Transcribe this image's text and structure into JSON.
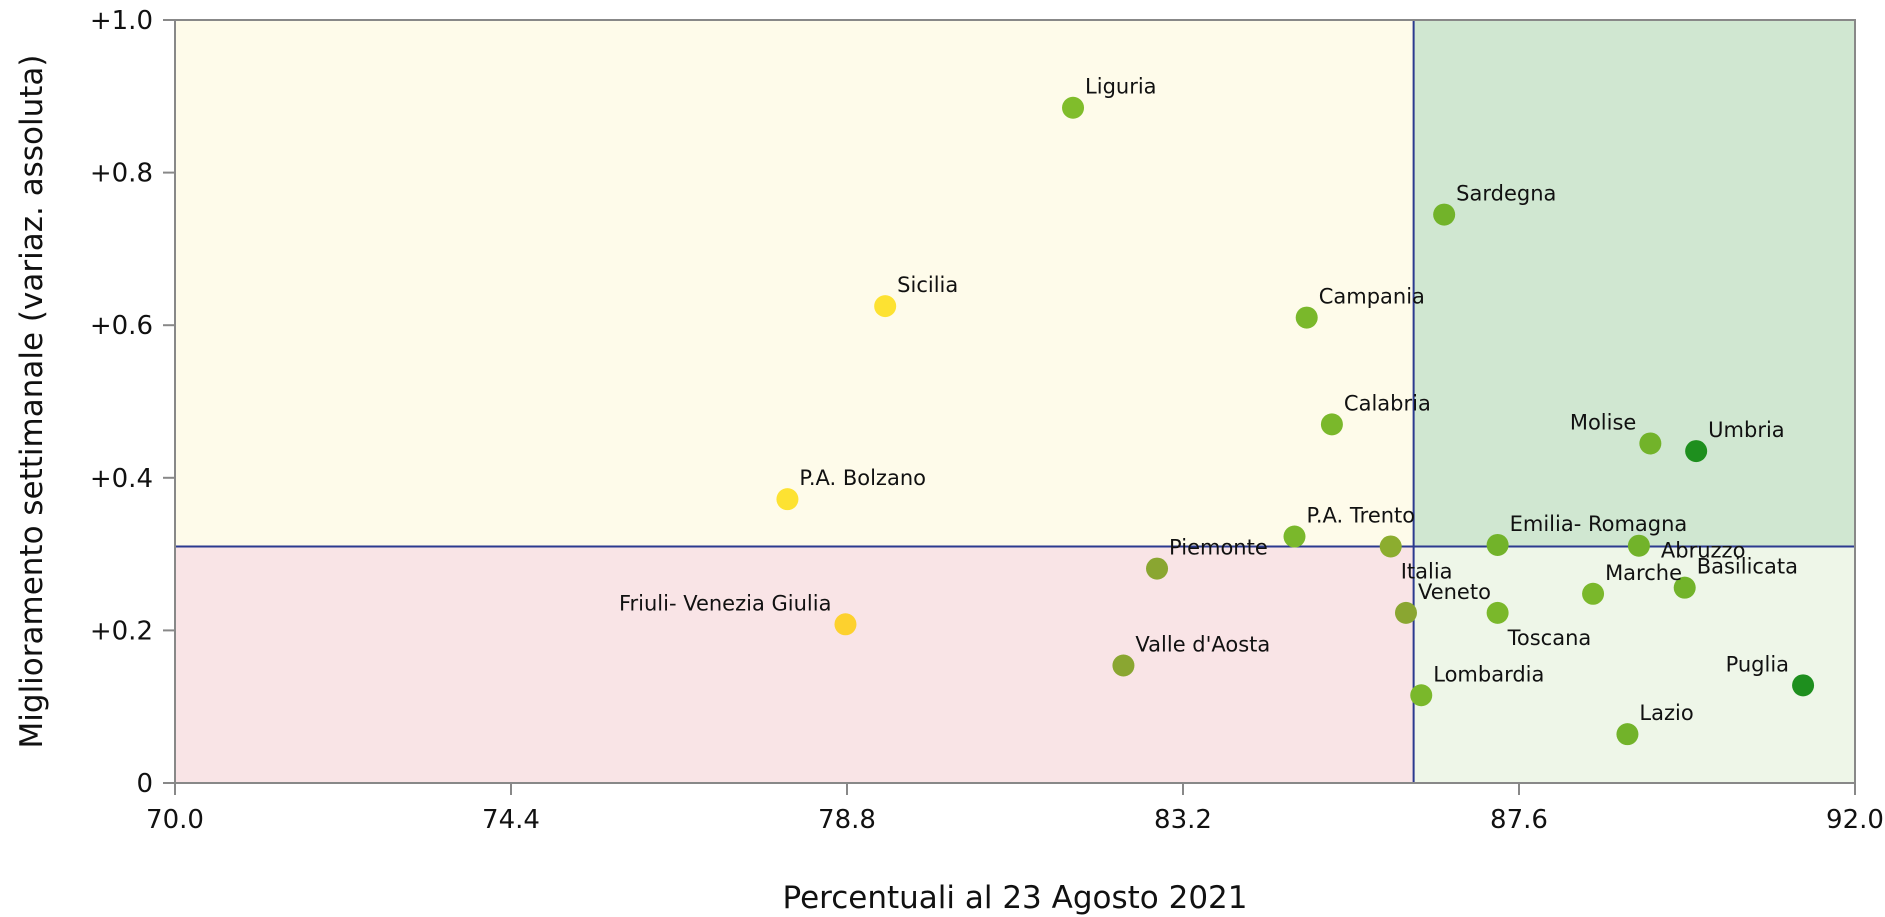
{
  "chart_data": {
    "type": "scatter",
    "xlabel": "Percentuali al 23 Agosto 2021",
    "ylabel": "Miglioramento settimanale (variaz. assoluta)",
    "xlim": [
      70.0,
      92.0
    ],
    "ylim": [
      0,
      1.0
    ],
    "x_ticks": [
      {
        "value": 70.0,
        "label": "70.0"
      },
      {
        "value": 74.4,
        "label": "74.4"
      },
      {
        "value": 78.8,
        "label": "78.8"
      },
      {
        "value": 83.2,
        "label": "83.2"
      },
      {
        "value": 87.6,
        "label": "87.6"
      },
      {
        "value": 92.0,
        "label": "92.0"
      }
    ],
    "y_ticks": [
      {
        "value": 0,
        "label": "0"
      },
      {
        "value": 0.2,
        "label": "+0.2"
      },
      {
        "value": 0.4,
        "label": "+0.4"
      },
      {
        "value": 0.6,
        "label": "+0.6"
      },
      {
        "value": 0.8,
        "label": "+0.8"
      },
      {
        "value": 1.0,
        "label": "+1.0"
      }
    ],
    "reference_lines": {
      "x": 86.22,
      "y": 0.31
    },
    "quadrant_colors": {
      "top_left": "#fefbea",
      "top_right": "#d0e7d1",
      "bottom_left": "#f9e4e6",
      "bottom_right": "#eef6e8"
    },
    "line_color": "#2b3a8f",
    "axis_color": "#888888",
    "grid": false,
    "points": [
      {
        "label": "Liguria",
        "x": 81.76,
        "y": 0.885,
        "color": "#80bd2b",
        "label_pos": "above-right"
      },
      {
        "label": "Sardegna",
        "x": 86.62,
        "y": 0.745,
        "color": "#72b32a",
        "label_pos": "above-right"
      },
      {
        "label": "Sicilia",
        "x": 79.3,
        "y": 0.625,
        "color": "#fde232",
        "label_pos": "above-right"
      },
      {
        "label": "Campania",
        "x": 84.82,
        "y": 0.61,
        "color": "#7ab82b",
        "label_pos": "above-right"
      },
      {
        "label": "Calabria",
        "x": 85.15,
        "y": 0.47,
        "color": "#7ab82b",
        "label_pos": "above-right"
      },
      {
        "label": "Molise",
        "x": 89.32,
        "y": 0.445,
        "color": "#72b32a",
        "label_pos": "above-left"
      },
      {
        "label": "Umbria",
        "x": 89.92,
        "y": 0.435,
        "color": "#1e8f1e",
        "label_pos": "above-right"
      },
      {
        "label": "P.A. Bolzano",
        "x": 78.02,
        "y": 0.372,
        "color": "#fde232",
        "label_pos": "above-right"
      },
      {
        "label": "P.A. Trento",
        "x": 84.66,
        "y": 0.323,
        "color": "#7ab82b",
        "label_pos": "above-right"
      },
      {
        "label": "Emilia- Romagna",
        "x": 87.32,
        "y": 0.312,
        "color": "#72b32a",
        "label_pos": "above-right"
      },
      {
        "label": "Italia",
        "x": 85.92,
        "y": 0.31,
        "color": "#8cad2f",
        "label_pos": "below-right"
      },
      {
        "label": "Abruzzo",
        "x": 89.17,
        "y": 0.311,
        "color": "#72b32a",
        "label_pos": "right-below"
      },
      {
        "label": "Piemonte",
        "x": 82.86,
        "y": 0.281,
        "color": "#8aa631",
        "label_pos": "above-right"
      },
      {
        "label": "Basilicata",
        "x": 89.77,
        "y": 0.256,
        "color": "#72b32a",
        "label_pos": "above-right"
      },
      {
        "label": "Marche",
        "x": 88.57,
        "y": 0.248,
        "color": "#7ab82b",
        "label_pos": "above-right"
      },
      {
        "label": "Veneto",
        "x": 86.12,
        "y": 0.223,
        "color": "#8aa631",
        "label_pos": "above-right"
      },
      {
        "label": "Toscana",
        "x": 87.32,
        "y": 0.223,
        "color": "#7ab82b",
        "label_pos": "below-right"
      },
      {
        "label": "Friuli- Venezia Giulia",
        "x": 78.78,
        "y": 0.208,
        "color": "#fdd12e",
        "label_pos": "above-left"
      },
      {
        "label": "Valle d'Aosta",
        "x": 82.42,
        "y": 0.154,
        "color": "#8aa631",
        "label_pos": "above-right"
      },
      {
        "label": "Puglia",
        "x": 91.32,
        "y": 0.128,
        "color": "#1e8f1e",
        "label_pos": "above-left"
      },
      {
        "label": "Lombardia",
        "x": 86.32,
        "y": 0.115,
        "color": "#7ab82b",
        "label_pos": "above-right"
      },
      {
        "label": "Lazio",
        "x": 89.02,
        "y": 0.064,
        "color": "#72b32a",
        "label_pos": "above-right"
      }
    ]
  }
}
